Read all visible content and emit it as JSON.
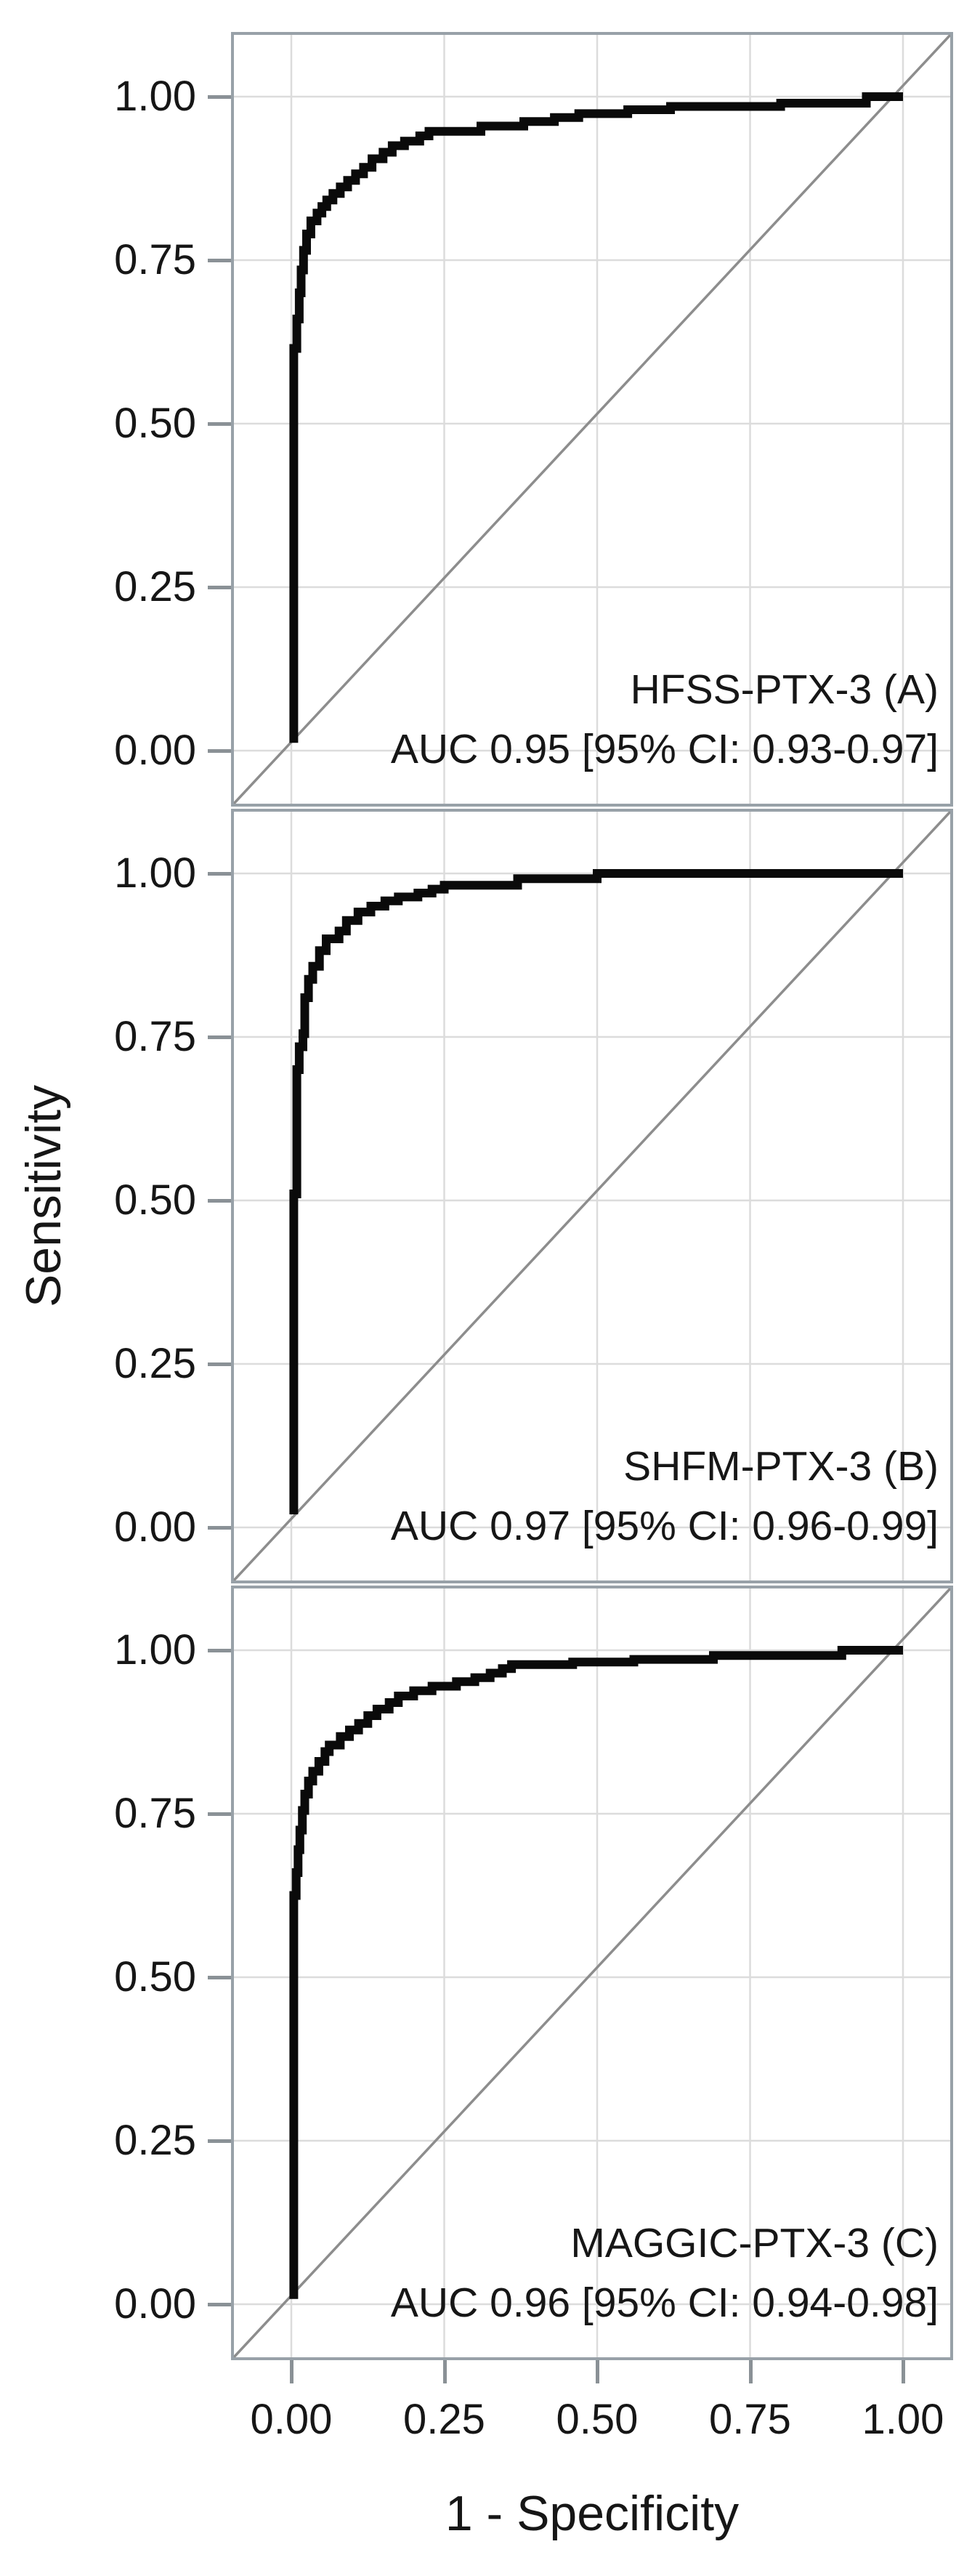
{
  "figure": {
    "y_axis_label": "Sensitivity",
    "x_axis_label": "1 - Specificity",
    "x_tick_labels": [
      "0.00",
      "0.25",
      "0.50",
      "0.75",
      "1.00"
    ],
    "y_tick_labels": [
      "1.00",
      "0.75",
      "0.50",
      "0.25",
      "0.00"
    ],
    "colors": {
      "background": "#ffffff",
      "curve": "#0a0a0a",
      "diagonal": "#8d8d8d",
      "gridline": "#dcdcdc",
      "panel_border": "#98a1a8",
      "tick": "#8a9196",
      "text": "#161616"
    }
  },
  "chart_data": [
    {
      "type": "line",
      "panel": "A",
      "label": "HFSS-PTX-3 (A)",
      "auc_text": "AUC 0.95 [95% CI: 0.93-0.97]",
      "auc": 0.95,
      "ci_low": 0.93,
      "ci_high": 0.97,
      "xlabel": "1 - Specificity",
      "ylabel": "Sensitivity",
      "xlim": [
        0,
        1
      ],
      "ylim": [
        0,
        1
      ],
      "xticks": [
        0,
        0.25,
        0.5,
        0.75,
        1
      ],
      "yticks": [
        0,
        0.25,
        0.5,
        0.75,
        1
      ],
      "grid": "major",
      "legend": "none",
      "diagonal_reference": true,
      "roc_points": [
        [
          0.004,
          0.012
        ],
        [
          0.004,
          0.615
        ],
        [
          0.009,
          0.615
        ],
        [
          0.009,
          0.66
        ],
        [
          0.013,
          0.66
        ],
        [
          0.013,
          0.7
        ],
        [
          0.016,
          0.7
        ],
        [
          0.016,
          0.735
        ],
        [
          0.02,
          0.735
        ],
        [
          0.02,
          0.765
        ],
        [
          0.025,
          0.765
        ],
        [
          0.025,
          0.79
        ],
        [
          0.032,
          0.79
        ],
        [
          0.032,
          0.81
        ],
        [
          0.042,
          0.81
        ],
        [
          0.042,
          0.822
        ],
        [
          0.05,
          0.822
        ],
        [
          0.05,
          0.832
        ],
        [
          0.058,
          0.832
        ],
        [
          0.058,
          0.842
        ],
        [
          0.068,
          0.842
        ],
        [
          0.068,
          0.852
        ],
        [
          0.08,
          0.852
        ],
        [
          0.08,
          0.862
        ],
        [
          0.092,
          0.862
        ],
        [
          0.092,
          0.872
        ],
        [
          0.105,
          0.872
        ],
        [
          0.105,
          0.882
        ],
        [
          0.118,
          0.882
        ],
        [
          0.118,
          0.892
        ],
        [
          0.132,
          0.892
        ],
        [
          0.132,
          0.905
        ],
        [
          0.15,
          0.905
        ],
        [
          0.15,
          0.915
        ],
        [
          0.165,
          0.915
        ],
        [
          0.165,
          0.925
        ],
        [
          0.185,
          0.925
        ],
        [
          0.185,
          0.932
        ],
        [
          0.21,
          0.932
        ],
        [
          0.21,
          0.94
        ],
        [
          0.225,
          0.94
        ],
        [
          0.225,
          0.947
        ],
        [
          0.31,
          0.947
        ],
        [
          0.31,
          0.955
        ],
        [
          0.38,
          0.955
        ],
        [
          0.38,
          0.962
        ],
        [
          0.43,
          0.962
        ],
        [
          0.43,
          0.968
        ],
        [
          0.47,
          0.968
        ],
        [
          0.47,
          0.974
        ],
        [
          0.55,
          0.974
        ],
        [
          0.55,
          0.98
        ],
        [
          0.62,
          0.98
        ],
        [
          0.62,
          0.985
        ],
        [
          0.8,
          0.985
        ],
        [
          0.8,
          0.99
        ],
        [
          0.94,
          0.99
        ],
        [
          0.94,
          1.0
        ],
        [
          1.0,
          1.0
        ]
      ]
    },
    {
      "type": "line",
      "panel": "B",
      "label": "SHFM-PTX-3 (B)",
      "auc_text": "AUC 0.97 [95% CI: 0.96-0.99]",
      "auc": 0.97,
      "ci_low": 0.96,
      "ci_high": 0.99,
      "xlabel": "1 - Specificity",
      "ylabel": "Sensitivity",
      "xlim": [
        0,
        1
      ],
      "ylim": [
        0,
        1
      ],
      "xticks": [
        0,
        0.25,
        0.5,
        0.75,
        1
      ],
      "yticks": [
        0,
        0.25,
        0.5,
        0.75,
        1
      ],
      "grid": "major",
      "legend": "none",
      "diagonal_reference": true,
      "roc_points": [
        [
          0.004,
          0.02
        ],
        [
          0.004,
          0.51
        ],
        [
          0.009,
          0.51
        ],
        [
          0.009,
          0.7
        ],
        [
          0.013,
          0.7
        ],
        [
          0.013,
          0.735
        ],
        [
          0.019,
          0.735
        ],
        [
          0.019,
          0.755
        ],
        [
          0.022,
          0.755
        ],
        [
          0.022,
          0.81
        ],
        [
          0.028,
          0.81
        ],
        [
          0.028,
          0.838
        ],
        [
          0.035,
          0.838
        ],
        [
          0.035,
          0.858
        ],
        [
          0.046,
          0.858
        ],
        [
          0.046,
          0.882
        ],
        [
          0.057,
          0.882
        ],
        [
          0.057,
          0.9
        ],
        [
          0.078,
          0.9
        ],
        [
          0.078,
          0.912
        ],
        [
          0.09,
          0.912
        ],
        [
          0.09,
          0.928
        ],
        [
          0.109,
          0.928
        ],
        [
          0.109,
          0.941
        ],
        [
          0.13,
          0.941
        ],
        [
          0.13,
          0.95
        ],
        [
          0.153,
          0.95
        ],
        [
          0.153,
          0.958
        ],
        [
          0.175,
          0.958
        ],
        [
          0.175,
          0.964
        ],
        [
          0.207,
          0.964
        ],
        [
          0.207,
          0.97
        ],
        [
          0.23,
          0.97
        ],
        [
          0.23,
          0.976
        ],
        [
          0.25,
          0.976
        ],
        [
          0.25,
          0.982
        ],
        [
          0.37,
          0.982
        ],
        [
          0.37,
          0.992
        ],
        [
          0.5,
          0.992
        ],
        [
          0.5,
          1.0
        ],
        [
          1.0,
          1.0
        ]
      ]
    },
    {
      "type": "line",
      "panel": "C",
      "label": "MAGGIC-PTX-3 (C)",
      "auc_text": "AUC 0.96 [95% CI: 0.94-0.98]",
      "auc": 0.96,
      "ci_low": 0.94,
      "ci_high": 0.98,
      "xlabel": "1 - Specificity",
      "ylabel": "Sensitivity",
      "xlim": [
        0,
        1
      ],
      "ylim": [
        0,
        1
      ],
      "xticks": [
        0,
        0.25,
        0.5,
        0.75,
        1
      ],
      "yticks": [
        0,
        0.25,
        0.5,
        0.75,
        1
      ],
      "grid": "major",
      "legend": "none",
      "diagonal_reference": true,
      "roc_points": [
        [
          0.004,
          0.008
        ],
        [
          0.004,
          0.625
        ],
        [
          0.008,
          0.625
        ],
        [
          0.008,
          0.66
        ],
        [
          0.011,
          0.66
        ],
        [
          0.011,
          0.695
        ],
        [
          0.014,
          0.695
        ],
        [
          0.014,
          0.725
        ],
        [
          0.018,
          0.725
        ],
        [
          0.018,
          0.755
        ],
        [
          0.022,
          0.755
        ],
        [
          0.022,
          0.78
        ],
        [
          0.028,
          0.78
        ],
        [
          0.028,
          0.8
        ],
        [
          0.035,
          0.8
        ],
        [
          0.035,
          0.815
        ],
        [
          0.045,
          0.815
        ],
        [
          0.045,
          0.83
        ],
        [
          0.055,
          0.83
        ],
        [
          0.055,
          0.845
        ],
        [
          0.062,
          0.845
        ],
        [
          0.062,
          0.855
        ],
        [
          0.08,
          0.855
        ],
        [
          0.08,
          0.868
        ],
        [
          0.095,
          0.868
        ],
        [
          0.095,
          0.878
        ],
        [
          0.11,
          0.878
        ],
        [
          0.11,
          0.888
        ],
        [
          0.125,
          0.888
        ],
        [
          0.125,
          0.9
        ],
        [
          0.14,
          0.9
        ],
        [
          0.14,
          0.91
        ],
        [
          0.16,
          0.91
        ],
        [
          0.16,
          0.92
        ],
        [
          0.175,
          0.92
        ],
        [
          0.175,
          0.93
        ],
        [
          0.2,
          0.93
        ],
        [
          0.2,
          0.938
        ],
        [
          0.23,
          0.938
        ],
        [
          0.23,
          0.945
        ],
        [
          0.27,
          0.945
        ],
        [
          0.27,
          0.952
        ],
        [
          0.3,
          0.952
        ],
        [
          0.3,
          0.958
        ],
        [
          0.325,
          0.958
        ],
        [
          0.325,
          0.965
        ],
        [
          0.345,
          0.965
        ],
        [
          0.345,
          0.972
        ],
        [
          0.36,
          0.972
        ],
        [
          0.36,
          0.978
        ],
        [
          0.46,
          0.978
        ],
        [
          0.46,
          0.982
        ],
        [
          0.56,
          0.982
        ],
        [
          0.56,
          0.986
        ],
        [
          0.69,
          0.986
        ],
        [
          0.69,
          0.992
        ],
        [
          0.9,
          0.992
        ],
        [
          0.9,
          1.0
        ],
        [
          1.0,
          1.0
        ]
      ]
    }
  ]
}
